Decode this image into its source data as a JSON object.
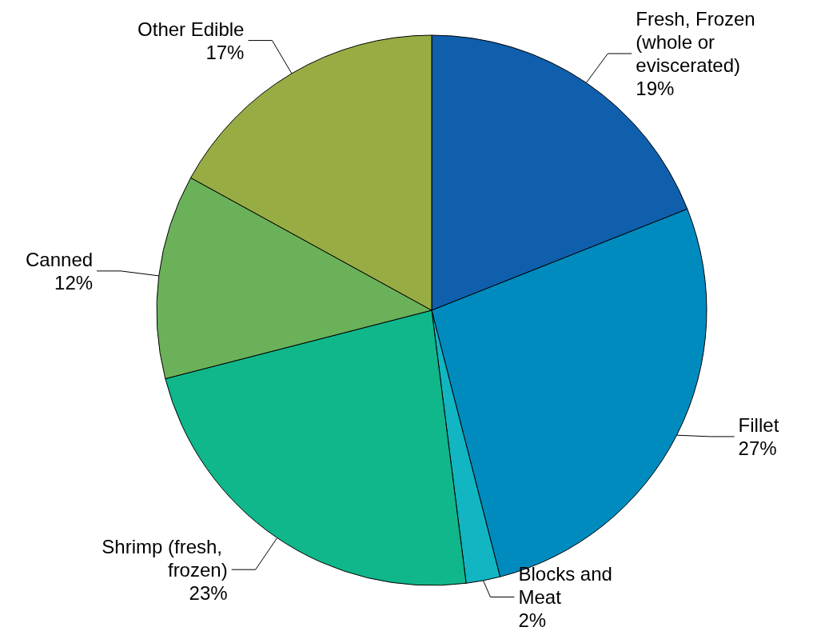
{
  "chart_data": {
    "type": "pie",
    "categories": [
      "Fresh, Frozen (whole or eviscerated)",
      "Fillet",
      "Blocks and Meat",
      "Shrimp (fresh, frozen)",
      "Canned",
      "Other Edible"
    ],
    "values": [
      19,
      27,
      2,
      23,
      12,
      17
    ],
    "colors": [
      "#0f5fad",
      "#008bbf",
      "#12b5c2",
      "#0fb78a",
      "#6ab15a",
      "#97ad44"
    ],
    "value_labels": [
      "19%",
      "27%",
      "2%",
      "23%",
      "12%",
      "17%"
    ],
    "legend": false
  }
}
